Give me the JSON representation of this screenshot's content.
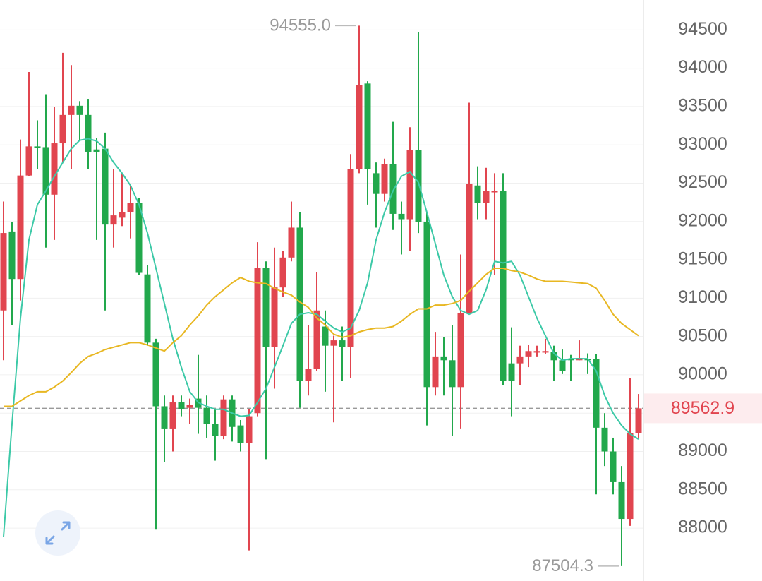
{
  "chart_data": {
    "type": "candlestick",
    "ylim": [
      87310,
      94890
    ],
    "yticks": [
      88000,
      88500,
      89000,
      89500,
      90000,
      90500,
      91000,
      91500,
      92000,
      92500,
      93000,
      93500,
      94000,
      94500
    ],
    "grid": true,
    "up_color": "#e1454f",
    "down_color": "#22a84c",
    "open": [
      90840,
      91870,
      91250,
      92600,
      92980,
      92970,
      92350,
      93020,
      93390,
      93510,
      93390,
      92940,
      92950,
      91960,
      92050,
      92120,
      92240,
      91310,
      90420,
      89590,
      89300,
      89640,
      89570,
      89690,
      89570,
      89360,
      89200,
      89680,
      89340,
      89110,
      89500,
      91390,
      90360,
      91140,
      91530,
      91920,
      89920,
      90080,
      90630,
      90380,
      90450,
      90360,
      92680,
      93800,
      92630,
      92360,
      92750,
      92100,
      92030,
      92930,
      91990,
      89840,
      90240,
      90190,
      89840,
      90810,
      92470,
      92240,
      92380,
      92400,
      90150,
      90150,
      90240,
      90290,
      90290,
      90300,
      90190,
      90210,
      90190,
      90210,
      90210,
      89310,
      89000,
      88600,
      88120,
      89240
    ],
    "high": [
      92260,
      91990,
      93070,
      93950,
      93320,
      93660,
      93490,
      94200,
      94040,
      93570,
      93600,
      93090,
      93160,
      92680,
      92630,
      92470,
      92310,
      91430,
      90470,
      89730,
      89730,
      89730,
      89690,
      90260,
      89730,
      89550,
      89730,
      89730,
      89410,
      89550,
      91730,
      91480,
      91660,
      91620,
      92260,
      92120,
      90650,
      91340,
      90840,
      90510,
      90630,
      92880,
      94555.0,
      93830,
      92770,
      92820,
      93300,
      92260,
      93230,
      94470,
      92120,
      90560,
      90490,
      90650,
      91570,
      93550,
      92720,
      92700,
      92630,
      92630,
      90620,
      90380,
      90390,
      90380,
      90470,
      90380,
      90330,
      90260,
      90450,
      90280,
      90270,
      89500,
      89180,
      88810,
      89960,
      89750
    ],
    "low": [
      90190,
      90650,
      90970,
      92590,
      92680,
      91660,
      91760,
      92770,
      92680,
      93050,
      92680,
      91760,
      90840,
      91660,
      91940,
      91780,
      91300,
      90380,
      87980,
      88860,
      89000,
      89460,
      89360,
      89230,
      89180,
      88880,
      89160,
      89130,
      89000,
      87710,
      89460,
      88900,
      89820,
      91020,
      91480,
      89570,
      89730,
      90050,
      89780,
      89380,
      89920,
      89960,
      92630,
      92220,
      91920,
      92260,
      91890,
      91570,
      91620,
      91850,
      89340,
      89730,
      89730,
      89200,
      89300,
      90790,
      92030,
      92030,
      91300,
      89870,
      89460,
      89870,
      90100,
      90240,
      90270,
      89920,
      90010,
      89920,
      90190,
      90010,
      88440,
      88810,
      88440,
      87504.3,
      88030,
      89180
    ],
    "close": [
      91850,
      91250,
      92600,
      92980,
      92970,
      92350,
      93020,
      93390,
      93510,
      93390,
      92910,
      92910,
      91960,
      92080,
      92120,
      92240,
      91330,
      90420,
      89590,
      89300,
      89640,
      89550,
      89610,
      89570,
      89360,
      89200,
      89680,
      89320,
      89110,
      89460,
      91390,
      90360,
      91140,
      91530,
      91920,
      89920,
      90080,
      90840,
      90380,
      90450,
      90360,
      92680,
      93780,
      92680,
      92360,
      92750,
      92100,
      92030,
      92930,
      91990,
      89840,
      90240,
      90190,
      89840,
      90810,
      92490,
      92240,
      92400,
      92400,
      89920,
      89920,
      90240,
      90310,
      90310,
      90310,
      90190,
      90050,
      90190,
      90220,
      90190,
      89310,
      89000,
      88600,
      88120,
      89240,
      89562.9
    ],
    "lines": [
      {
        "color": "#3cc9a7",
        "values": [
          87890,
          89360,
          90740,
          91760,
          92220,
          92400,
          92590,
          92770,
          92950,
          93060,
          93080,
          93050,
          92950,
          92770,
          92630,
          92470,
          92220,
          91850,
          91390,
          90930,
          90470,
          90100,
          89780,
          89640,
          89590,
          89550,
          89550,
          89500,
          89460,
          89470,
          89640,
          89820,
          90100,
          90380,
          90670,
          90790,
          90810,
          90790,
          90700,
          90610,
          90560,
          90610,
          90840,
          91200,
          91760,
          92120,
          92400,
          92590,
          92650,
          92510,
          92120,
          91710,
          91300,
          91020,
          90840,
          90790,
          90840,
          91110,
          91480,
          91460,
          91480,
          91300,
          91020,
          90740,
          90510,
          90280,
          90190,
          90210,
          90210,
          90210,
          90050,
          89730,
          89500,
          89340,
          89230,
          89160
        ]
      },
      {
        "color": "#e8b722",
        "values": [
          89590,
          89590,
          89660,
          89730,
          89780,
          89780,
          89840,
          89920,
          90030,
          90150,
          90240,
          90280,
          90330,
          90360,
          90390,
          90420,
          90420,
          90390,
          90350,
          90310,
          90420,
          90510,
          90650,
          90770,
          90910,
          91020,
          91110,
          91200,
          91270,
          91220,
          91200,
          91190,
          91130,
          91080,
          91040,
          90950,
          90880,
          90740,
          90650,
          90530,
          90490,
          90510,
          90560,
          90590,
          90610,
          90610,
          90630,
          90700,
          90790,
          90860,
          90860,
          90910,
          90910,
          90930,
          90970,
          91090,
          91200,
          91310,
          91390,
          91390,
          91360,
          91340,
          91300,
          91250,
          91220,
          91220,
          91220,
          91210,
          91200,
          91190,
          91130,
          90970,
          90790,
          90670,
          90590,
          90510
        ]
      }
    ],
    "high_label": "94555.0",
    "low_label": "87504.3",
    "last_label": "89562.9"
  }
}
